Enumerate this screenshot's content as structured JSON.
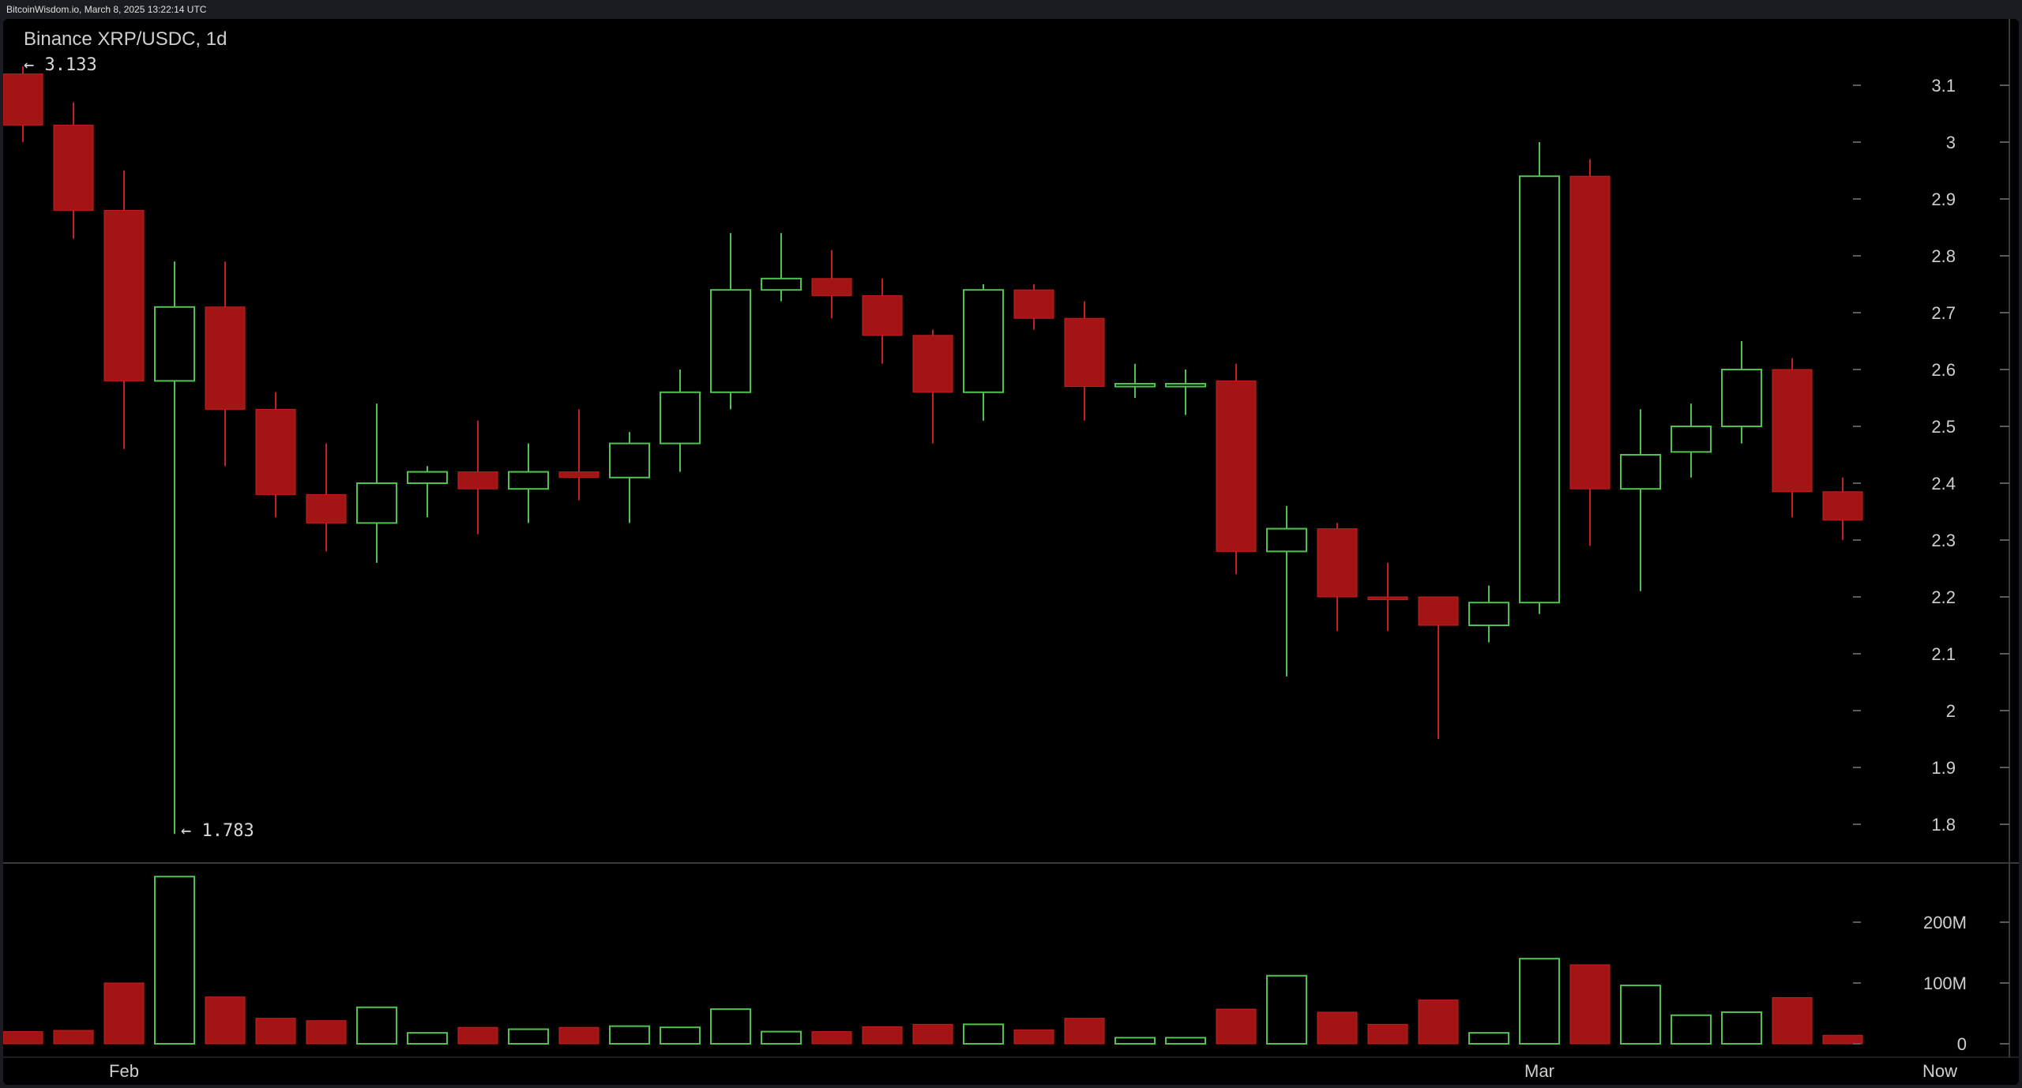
{
  "header": {
    "source_text": "BitcoinWisdom.io, March 8, 2025 13:22:14 UTC"
  },
  "chart_data": {
    "type": "candlestick",
    "title": "Binance XRP/USDC, 1d",
    "max_label": "← 3.133",
    "min_label": "← 1.783",
    "x_labels": [
      "Feb",
      "Mar",
      "Now"
    ],
    "y_ticks": [
      "3.1",
      "3",
      "2.9",
      "2.8",
      "2.7",
      "2.6",
      "2.5",
      "2.4",
      "2.3",
      "2.2",
      "2.1",
      "2",
      "1.9",
      "1.8"
    ],
    "volume_ticks": [
      "200M",
      "100M",
      "0"
    ],
    "ylim": [
      1.75,
      3.18
    ],
    "volume_ylim": [
      0,
      300
    ],
    "colors": {
      "up": "#4fc24f",
      "down": "#a31414",
      "down_border": "#c42020",
      "axis_text": "#cfcfcf",
      "divider": "#3a3a3a"
    },
    "candles": [
      {
        "o": 3.12,
        "h": 3.133,
        "l": 3.0,
        "c": 3.03,
        "v": 20
      },
      {
        "o": 3.03,
        "h": 3.07,
        "l": 2.83,
        "c": 2.88,
        "v": 22
      },
      {
        "o": 2.88,
        "h": 2.95,
        "l": 2.46,
        "c": 2.58,
        "v": 100
      },
      {
        "o": 2.58,
        "h": 2.79,
        "l": 1.783,
        "c": 2.71,
        "v": 275
      },
      {
        "o": 2.71,
        "h": 2.79,
        "l": 2.43,
        "c": 2.53,
        "v": 77
      },
      {
        "o": 2.53,
        "h": 2.56,
        "l": 2.34,
        "c": 2.38,
        "v": 42
      },
      {
        "o": 2.38,
        "h": 2.47,
        "l": 2.28,
        "c": 2.33,
        "v": 38
      },
      {
        "o": 2.33,
        "h": 2.54,
        "l": 2.26,
        "c": 2.4,
        "v": 60
      },
      {
        "o": 2.4,
        "h": 2.43,
        "l": 2.34,
        "c": 2.42,
        "v": 18
      },
      {
        "o": 2.42,
        "h": 2.51,
        "l": 2.31,
        "c": 2.39,
        "v": 27
      },
      {
        "o": 2.39,
        "h": 2.47,
        "l": 2.33,
        "c": 2.42,
        "v": 24
      },
      {
        "o": 2.42,
        "h": 2.53,
        "l": 2.37,
        "c": 2.41,
        "v": 27
      },
      {
        "o": 2.41,
        "h": 2.49,
        "l": 2.33,
        "c": 2.47,
        "v": 29
      },
      {
        "o": 2.47,
        "h": 2.6,
        "l": 2.42,
        "c": 2.56,
        "v": 27
      },
      {
        "o": 2.56,
        "h": 2.84,
        "l": 2.53,
        "c": 2.74,
        "v": 57
      },
      {
        "o": 2.74,
        "h": 2.84,
        "l": 2.72,
        "c": 2.76,
        "v": 20
      },
      {
        "o": 2.76,
        "h": 2.81,
        "l": 2.69,
        "c": 2.73,
        "v": 20
      },
      {
        "o": 2.73,
        "h": 2.76,
        "l": 2.61,
        "c": 2.66,
        "v": 28
      },
      {
        "o": 2.66,
        "h": 2.67,
        "l": 2.47,
        "c": 2.56,
        "v": 32
      },
      {
        "o": 2.56,
        "h": 2.75,
        "l": 2.51,
        "c": 2.74,
        "v": 32
      },
      {
        "o": 2.74,
        "h": 2.75,
        "l": 2.67,
        "c": 2.69,
        "v": 23
      },
      {
        "o": 2.69,
        "h": 2.72,
        "l": 2.51,
        "c": 2.57,
        "v": 42
      },
      {
        "o": 2.57,
        "h": 2.61,
        "l": 2.55,
        "c": 2.575,
        "v": 10
      },
      {
        "o": 2.57,
        "h": 2.6,
        "l": 2.52,
        "c": 2.575,
        "v": 10
      },
      {
        "o": 2.58,
        "h": 2.61,
        "l": 2.24,
        "c": 2.28,
        "v": 57
      },
      {
        "o": 2.28,
        "h": 2.36,
        "l": 2.06,
        "c": 2.32,
        "v": 112
      },
      {
        "o": 2.32,
        "h": 2.33,
        "l": 2.14,
        "c": 2.2,
        "v": 52
      },
      {
        "o": 2.2,
        "h": 2.26,
        "l": 2.14,
        "c": 2.195,
        "v": 32
      },
      {
        "o": 2.2,
        "h": 2.2,
        "l": 1.95,
        "c": 2.15,
        "v": 72
      },
      {
        "o": 2.15,
        "h": 2.22,
        "l": 2.12,
        "c": 2.19,
        "v": 18
      },
      {
        "o": 2.19,
        "h": 3.0,
        "l": 2.17,
        "c": 2.94,
        "v": 140
      },
      {
        "o": 2.94,
        "h": 2.97,
        "l": 2.29,
        "c": 2.39,
        "v": 130
      },
      {
        "o": 2.39,
        "h": 2.53,
        "l": 2.21,
        "c": 2.45,
        "v": 96
      },
      {
        "o": 2.455,
        "h": 2.54,
        "l": 2.41,
        "c": 2.5,
        "v": 47
      },
      {
        "o": 2.5,
        "h": 2.65,
        "l": 2.47,
        "c": 2.6,
        "v": 52
      },
      {
        "o": 2.6,
        "h": 2.62,
        "l": 2.34,
        "c": 2.385,
        "v": 76
      },
      {
        "o": 2.385,
        "h": 2.41,
        "l": 2.3,
        "c": 2.335,
        "v": 14
      }
    ]
  }
}
